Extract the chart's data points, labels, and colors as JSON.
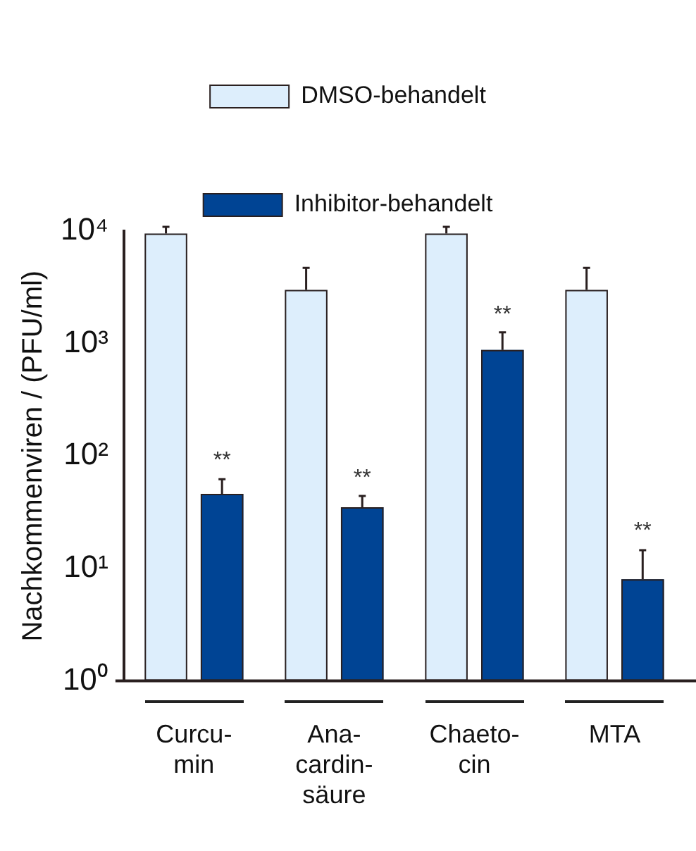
{
  "chart_data": {
    "type": "bar",
    "ylabel": "Nachkommenviren / (PFU/ml)",
    "categories": [
      "Curcu-\nmin",
      "Ana-\ncardin-\nsäure",
      "Chaeto-\ncin",
      "MTA"
    ],
    "series": [
      {
        "name": "DMSO-behandelt",
        "color": "#ddeefc",
        "values": [
          9500,
          3000,
          9500,
          3000
        ],
        "errors": [
          1400,
          1700,
          1400,
          1700
        ]
      },
      {
        "name": "Inhibitor-behandelt",
        "color": "#004494",
        "values": [
          46,
          35,
          875,
          8
        ],
        "errors": [
          16,
          9,
          380,
          6.5
        ]
      }
    ],
    "log": "y",
    "ylim": [
      1,
      10000
    ],
    "yticks": [
      {
        "value": 1,
        "label": "10⁰"
      },
      {
        "value": 10,
        "label": "10¹"
      },
      {
        "value": 100,
        "label": "10²"
      },
      {
        "value": 1000,
        "label": "10³"
      },
      {
        "value": 10000,
        "label": "10⁴"
      }
    ],
    "grid": false,
    "legend": "top",
    "annotations": [
      {
        "text": "**",
        "x": "Curcu-\nmin",
        "y": 80
      },
      {
        "text": "**",
        "x": "Ana-\ncardin-\nsäure",
        "y": 56
      },
      {
        "text": "**",
        "x": "Chaeto-\ncin",
        "y": 1600
      },
      {
        "text": "**",
        "x": "MTA",
        "y": 19
      }
    ]
  }
}
